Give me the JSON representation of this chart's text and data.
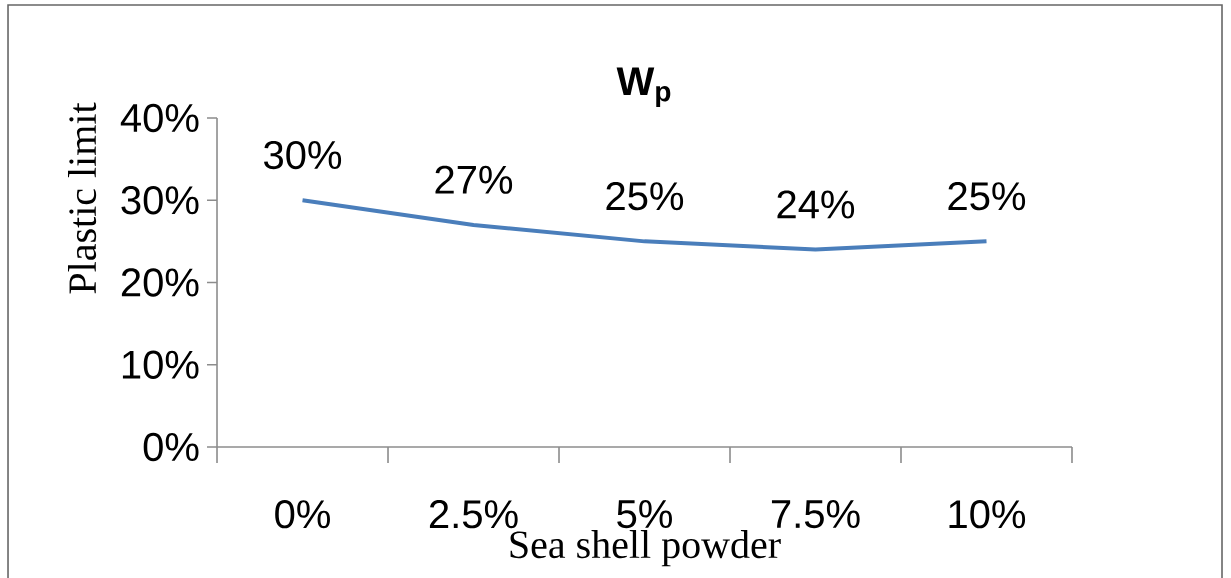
{
  "chart_data": {
    "type": "line",
    "title": "W$_{p}$",
    "xlabel": "Sea shell powder",
    "ylabel": "Plastic limit",
    "categories": [
      "0%",
      "2.5%",
      "5%",
      "7.5%",
      "10%"
    ],
    "series": [
      {
        "color": "#4a7ebb",
        "values": [
          30,
          27,
          25,
          24,
          25
        ],
        "value_labels": [
          "30%",
          "27%",
          "25%",
          "24%",
          "25%"
        ]
      }
    ],
    "ylim": [
      0,
      40
    ],
    "yticks": [
      {
        "value": 0,
        "label": "0%"
      },
      {
        "value": 10,
        "label": "10%"
      },
      {
        "value": 20,
        "label": "20%"
      },
      {
        "value": 30,
        "label": "30%"
      },
      {
        "value": 40,
        "label": "40%"
      }
    ],
    "grid": false,
    "marker": "none",
    "line_style": "solid"
  }
}
